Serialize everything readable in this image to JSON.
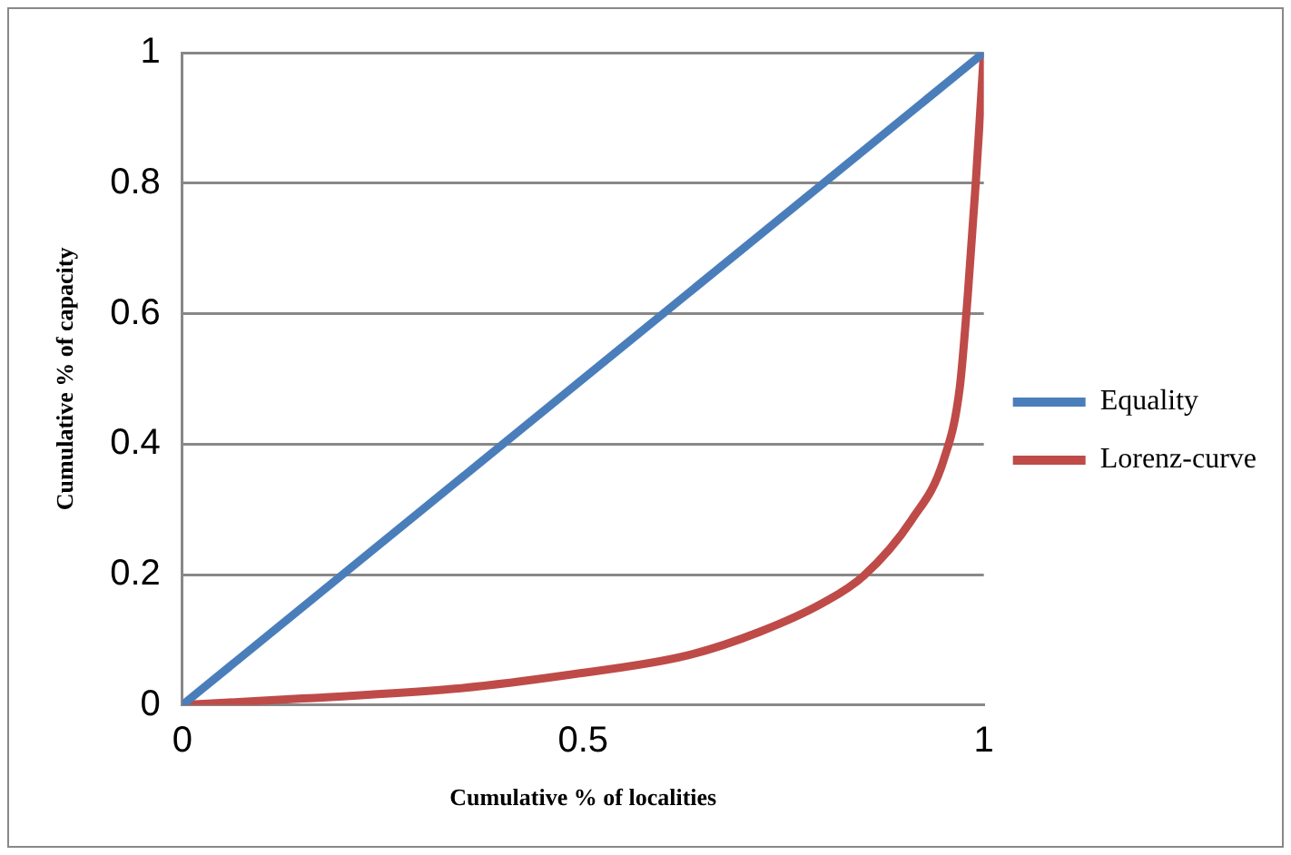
{
  "chart_data": {
    "type": "line",
    "xlabel": "Cumulative % of localities",
    "ylabel": "Cumulative % of capacity",
    "xlim": [
      0,
      1
    ],
    "xticks": [
      0,
      0.5,
      1
    ],
    "ylim": [
      0,
      1
    ],
    "yticks": [
      0,
      0.2,
      0.4,
      0.6,
      0.8,
      1
    ],
    "grid": "y",
    "legend": "right",
    "marker": "none",
    "line_style": "solid",
    "series": [
      {
        "name": "Equality",
        "color": "#4a7ebb",
        "x": [
          0,
          1
        ],
        "values": [
          0,
          1
        ]
      },
      {
        "name": "Lorenz-curve",
        "color": "#be4b48",
        "x": [
          0,
          0.15,
          0.34,
          0.48,
          0.63,
          0.72,
          0.8,
          0.85,
          0.91,
          0.95,
          0.97,
          0.98,
          0.99,
          1
        ],
        "values": [
          0,
          0.01,
          0.025,
          0.046,
          0.076,
          0.112,
          0.157,
          0.198,
          0.284,
          0.376,
          0.487,
          0.629,
          0.802,
          1
        ]
      }
    ]
  }
}
